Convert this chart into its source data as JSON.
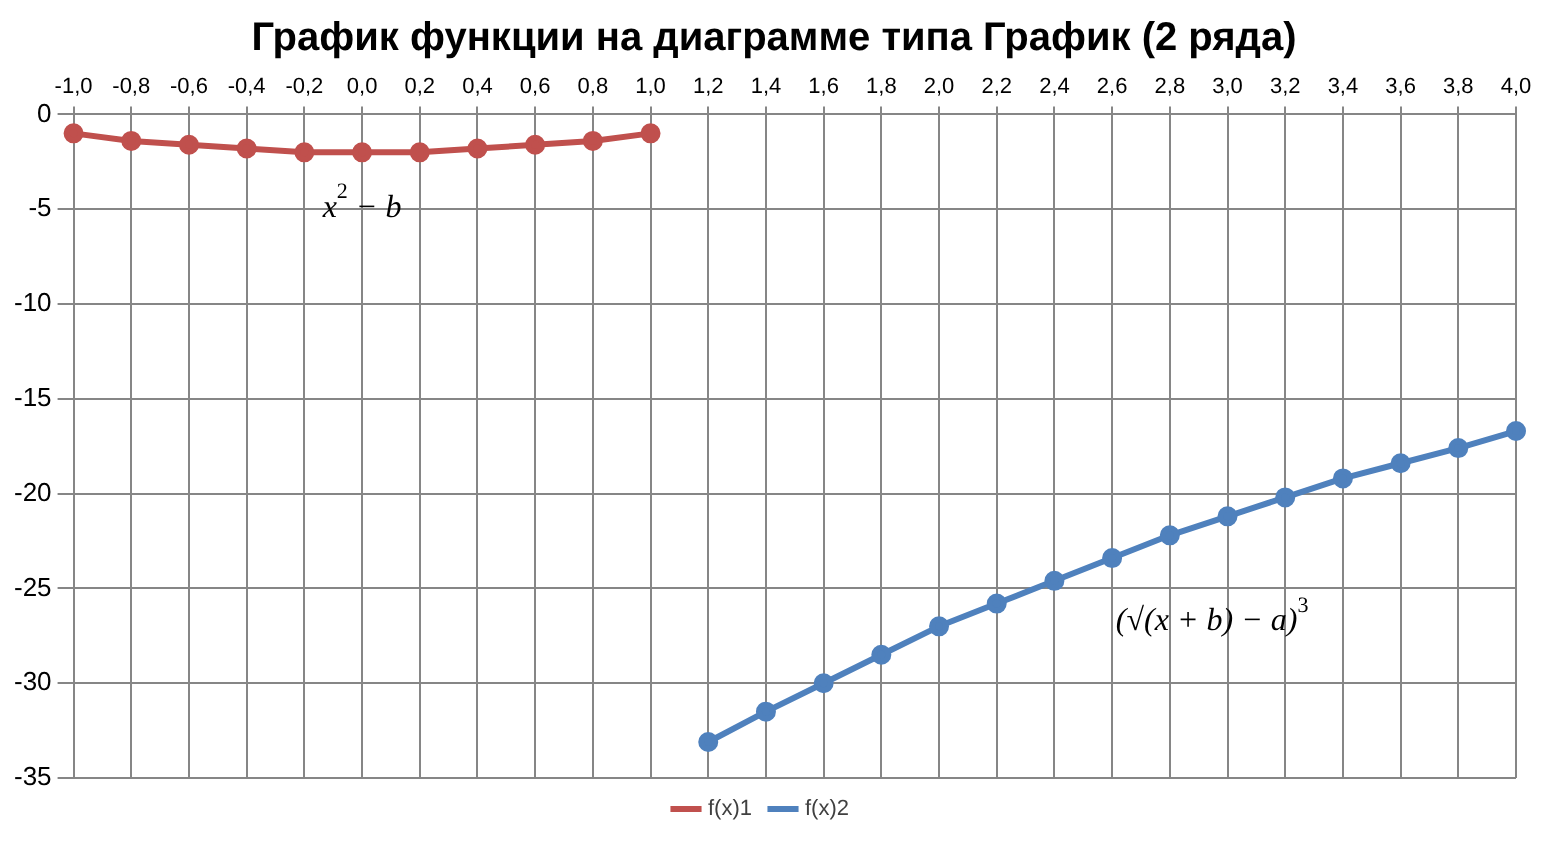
{
  "chart_data": {
    "type": "line",
    "title": "График функции на диаграмме типа График (2 ряда)",
    "categories": [
      "-1,0",
      "-0,8",
      "-0,6",
      "-0,4",
      "-0,2",
      "0,0",
      "0,2",
      "0,4",
      "0,6",
      "0,8",
      "1,0",
      "1,2",
      "1,4",
      "1,6",
      "1,8",
      "2,0",
      "2,2",
      "2,4",
      "2,6",
      "2,8",
      "3,0",
      "3,2",
      "3,4",
      "3,6",
      "3,8",
      "4,0"
    ],
    "series": [
      {
        "name": "f(x)1",
        "color": "#c0504d",
        "values": [
          -1,
          -1.4,
          -1.6,
          -1.8,
          -2,
          -2,
          -2,
          -1.8,
          -1.6,
          -1.4,
          -1,
          null,
          null,
          null,
          null,
          null,
          null,
          null,
          null,
          null,
          null,
          null,
          null,
          null,
          null,
          null
        ]
      },
      {
        "name": "f(x)2",
        "color": "#4f81bd",
        "values": [
          null,
          null,
          null,
          null,
          null,
          null,
          null,
          null,
          null,
          null,
          null,
          -33.1,
          -31.5,
          -30,
          -28.5,
          -27,
          -25.8,
          -24.6,
          -23.4,
          -22.2,
          -21.2,
          -20.2,
          -19.2,
          -18.4,
          -17.6,
          -16.7
        ]
      }
    ],
    "ylim": [
      -35,
      0
    ],
    "yticks": [
      -35,
      -30,
      -25,
      -20,
      -15,
      -10,
      -5,
      0
    ],
    "grid": true,
    "legend": "bottom",
    "marker": "circle",
    "line_style": "solid",
    "annotations": [
      "x$^{2}$ − b",
      "(√(x + b) − a)$^{3}$"
    ]
  }
}
